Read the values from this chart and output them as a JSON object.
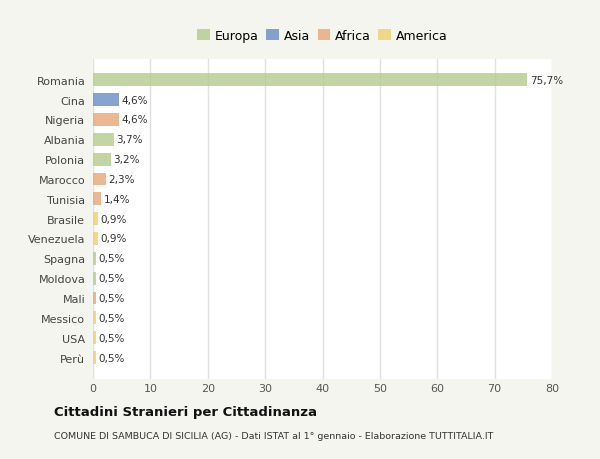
{
  "countries": [
    "Romania",
    "Cina",
    "Nigeria",
    "Albania",
    "Polonia",
    "Marocco",
    "Tunisia",
    "Brasile",
    "Venezuela",
    "Spagna",
    "Moldova",
    "Mali",
    "Messico",
    "USA",
    "Perù"
  ],
  "values": [
    75.7,
    4.6,
    4.6,
    3.7,
    3.2,
    2.3,
    1.4,
    0.9,
    0.9,
    0.5,
    0.5,
    0.5,
    0.5,
    0.5,
    0.5
  ],
  "labels": [
    "75,7%",
    "4,6%",
    "4,6%",
    "3,7%",
    "3,2%",
    "2,3%",
    "1,4%",
    "0,9%",
    "0,9%",
    "0,5%",
    "0,5%",
    "0,5%",
    "0,5%",
    "0,5%",
    "0,5%"
  ],
  "continents": [
    "Europa",
    "Asia",
    "Africa",
    "Europa",
    "Europa",
    "Africa",
    "Africa",
    "America",
    "America",
    "Europa",
    "Europa",
    "Africa",
    "America",
    "America",
    "America"
  ],
  "continent_colors": {
    "Europa": "#b5cc8e",
    "Asia": "#6b8fc7",
    "Africa": "#e8a87c",
    "America": "#f0d070"
  },
  "xlim": [
    0,
    80
  ],
  "xticks": [
    0,
    10,
    20,
    30,
    40,
    50,
    60,
    70,
    80
  ],
  "plot_bg_color": "#ffffff",
  "fig_bg_color": "#f5f5f0",
  "grid_color": "#e0e0e0",
  "title": "Cittadini Stranieri per Cittadinanza",
  "subtitle": "COMUNE DI SAMBUCA DI SICILIA (AG) - Dati ISTAT al 1° gennaio - Elaborazione TUTTITALIA.IT"
}
